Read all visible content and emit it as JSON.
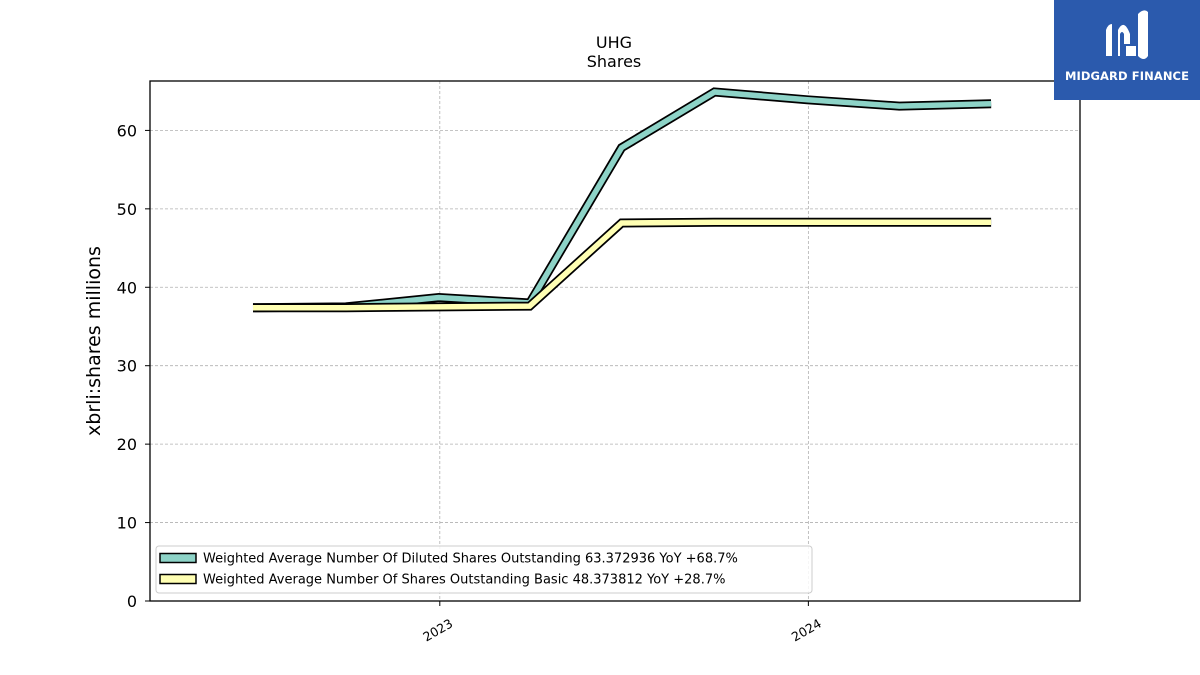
{
  "logo": {
    "name": "MIDGARD FINANCE"
  },
  "chart_data": {
    "type": "line",
    "title": "UHG",
    "subtitle": "Shares",
    "xlabel": "",
    "ylabel": "xbrli:shares millions",
    "ylim": [
      0,
      66.3
    ],
    "xlim": [
      "2022-03-20",
      "2024-09-26"
    ],
    "yticks": [
      0,
      10,
      20,
      30,
      40,
      50,
      60
    ],
    "xticks": [
      {
        "date": "2023-01-01",
        "label": "2023"
      },
      {
        "date": "2024-01-01",
        "label": "2024"
      }
    ],
    "grid": true,
    "legend_position": "lower-left",
    "series": [
      {
        "name": "Weighted Average Number Of Diluted Shares Outstanding  63.372936 YoY +68.7%",
        "color": "#8dd3c7",
        "points": [
          {
            "x": "2022-06-30",
            "y": 37.4
          },
          {
            "x": "2022-09-30",
            "y": 37.5
          },
          {
            "x": "2022-12-31",
            "y": 38.7
          },
          {
            "x": "2023-03-31",
            "y": 38.0
          },
          {
            "x": "2023-06-30",
            "y": 57.8
          },
          {
            "x": "2023-09-30",
            "y": 64.9
          },
          {
            "x": "2023-12-31",
            "y": 63.9
          },
          {
            "x": "2024-03-31",
            "y": 63.1
          },
          {
            "x": "2024-06-30",
            "y": 63.4
          }
        ]
      },
      {
        "name": "Weighted Average Number Of Shares Outstanding Basic  48.373812 YoY +28.7%",
        "color": "#ffffb3",
        "points": [
          {
            "x": "2022-06-30",
            "y": 37.4
          },
          {
            "x": "2022-09-30",
            "y": 37.4
          },
          {
            "x": "2022-12-31",
            "y": 37.5
          },
          {
            "x": "2023-03-31",
            "y": 37.6
          },
          {
            "x": "2023-06-30",
            "y": 48.2
          },
          {
            "x": "2023-09-30",
            "y": 48.3
          },
          {
            "x": "2023-12-31",
            "y": 48.3
          },
          {
            "x": "2024-03-31",
            "y": 48.3
          },
          {
            "x": "2024-06-30",
            "y": 48.3
          }
        ]
      }
    ]
  }
}
